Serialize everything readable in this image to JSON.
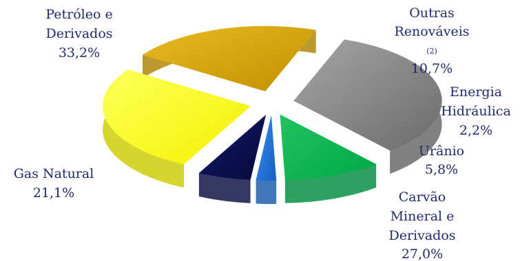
{
  "chart_data": {
    "type": "pie",
    "style": "exploded-3d",
    "title": "",
    "slices": [
      {
        "key": "petroleo",
        "label_lines": [
          "Petróleo e",
          "Derivados"
        ],
        "value": 33.2,
        "value_label": "33,2%",
        "color": "#7f7f7f"
      },
      {
        "key": "outras",
        "label_lines": [
          "Outras",
          "Renováveis"
        ],
        "footnote": "(2)",
        "value": 10.7,
        "value_label": "10,7%",
        "color": "#00b050"
      },
      {
        "key": "hidraulica",
        "label_lines": [
          "Energia",
          "Hidráulica"
        ],
        "value": 2.2,
        "value_label": "2,2%",
        "color": "#1f6fd6"
      },
      {
        "key": "uranio",
        "label_lines": [
          "Urânio"
        ],
        "value": 5.8,
        "value_label": "5,8%",
        "color": "#0a1050"
      },
      {
        "key": "carvao",
        "label_lines": [
          "Carvão",
          "Mineral e",
          "Derivados"
        ],
        "value": 27.0,
        "value_label": "27,0%",
        "color": "#ffff00"
      },
      {
        "key": "gas",
        "label_lines": [
          "Gas Natural"
        ],
        "value": 21.1,
        "value_label": "21,1%",
        "color": "#d9a300"
      }
    ]
  }
}
